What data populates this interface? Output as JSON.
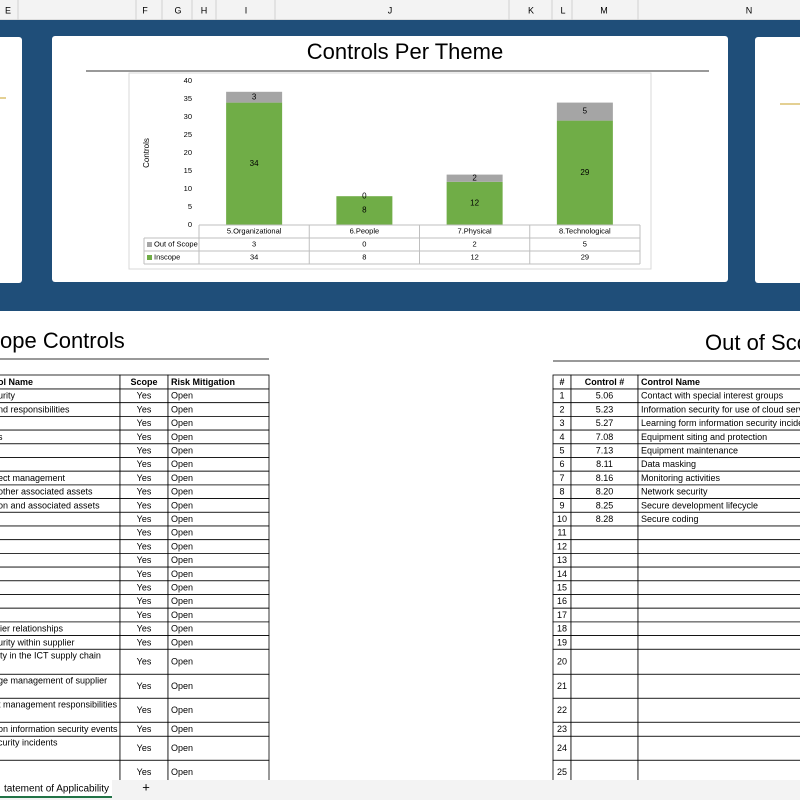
{
  "columns": [
    "E",
    "F",
    "G",
    "H",
    "I",
    "J",
    "K",
    "L",
    "M",
    "N"
  ],
  "chart_data": {
    "type": "stacked-bar",
    "title": "Controls Per Theme",
    "y_label": "Controls",
    "categories": [
      "5.Organizational",
      "6.People",
      "7.Physical",
      "8.Technological"
    ],
    "series": [
      {
        "name": "Out of Scope",
        "color": "#a5a5a5",
        "values": [
          3,
          0,
          2,
          5
        ]
      },
      {
        "name": "Inscope",
        "color": "#70ad47",
        "values": [
          34,
          8,
          12,
          29
        ]
      }
    ],
    "ylim": [
      0,
      40
    ],
    "yticks": [
      0,
      5,
      10,
      15,
      20,
      25,
      30,
      35,
      40
    ],
    "grid": false
  },
  "left": {
    "title": "ope Controls",
    "headers": [
      "ol Name",
      "Scope",
      "Risk Mitigation"
    ],
    "rows": [
      [
        "urity",
        "Yes",
        "Open"
      ],
      [
        "nd responsibilities",
        "Yes",
        "Open"
      ],
      [
        null,
        "Yes",
        "Open"
      ],
      [
        "s",
        "Yes",
        "Open"
      ],
      [
        null,
        "Yes",
        "Open"
      ],
      [
        null,
        "Yes",
        "Open"
      ],
      [
        "ect management",
        "Yes",
        "Open"
      ],
      [
        "other associated assets",
        "Yes",
        "Open"
      ],
      [
        "on and associated assets",
        "Yes",
        "Open"
      ],
      [
        null,
        "Yes",
        "Open"
      ],
      [
        null,
        "Yes",
        "Open"
      ],
      [
        null,
        "Yes",
        "Open"
      ],
      [
        null,
        "Yes",
        "Open"
      ],
      [
        null,
        "Yes",
        "Open"
      ],
      [
        null,
        "Yes",
        "Open"
      ],
      [
        null,
        "Yes",
        "Open"
      ],
      [
        null,
        "Yes",
        "Open"
      ],
      [
        "lier relationships",
        "Yes",
        "Open"
      ],
      [
        "urity within supplier",
        "Yes",
        "Open"
      ],
      [
        "ity in the ICT supply chain",
        "Yes",
        "Open"
      ],
      [
        "ge management of supplier",
        "Yes",
        "Open"
      ],
      [
        "t management responsibilities",
        "Yes",
        "Open"
      ],
      [
        "on information security events",
        "Yes",
        "Open"
      ],
      [
        "curity incidents",
        "Yes",
        "Open"
      ],
      [
        null,
        "Yes",
        "Open"
      ]
    ]
  },
  "right": {
    "title": "Out of Sco",
    "headers": [
      "#",
      "Control #",
      "Control Name"
    ],
    "rows": [
      [
        1,
        "5.06",
        "Contact with special interest groups"
      ],
      [
        2,
        "5.23",
        "Information security for use of cloud servi"
      ],
      [
        3,
        "5.27",
        "Learning form information security incide"
      ],
      [
        4,
        "7.08",
        "Equipment siting and protection"
      ],
      [
        5,
        "7.13",
        "Equipment maintenance"
      ],
      [
        6,
        "8.11",
        "Data masking"
      ],
      [
        7,
        "8.16",
        "Monitoring activities"
      ],
      [
        8,
        "8.20",
        "Network security"
      ],
      [
        9,
        "8.25",
        "Secure development lifecycle"
      ],
      [
        10,
        "8.28",
        "Secure coding"
      ],
      [
        11,
        null,
        null
      ],
      [
        12,
        null,
        null
      ],
      [
        13,
        null,
        null
      ],
      [
        14,
        null,
        null
      ],
      [
        15,
        null,
        null
      ],
      [
        16,
        null,
        null
      ],
      [
        17,
        null,
        null
      ],
      [
        18,
        null,
        null
      ],
      [
        19,
        null,
        null
      ],
      [
        20,
        null,
        null
      ],
      [
        21,
        null,
        null
      ],
      [
        22,
        null,
        null
      ],
      [
        23,
        null,
        null
      ],
      [
        24,
        null,
        null
      ],
      [
        25,
        null,
        null
      ]
    ]
  },
  "tabs": {
    "sheet": "tatement of Applicability",
    "add": "+"
  }
}
